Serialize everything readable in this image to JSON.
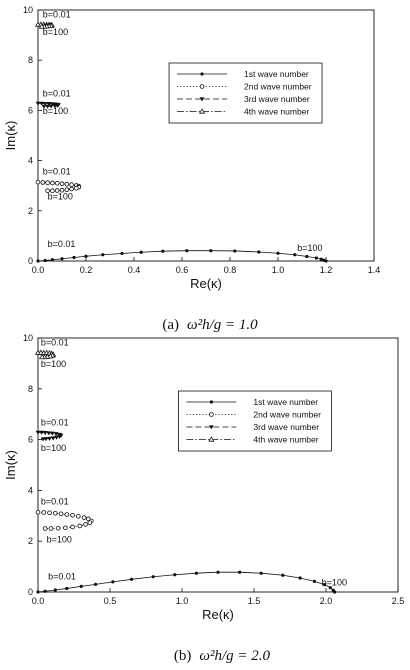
{
  "colors": {
    "ink": "#111111",
    "background": "#ffffff"
  },
  "chart_data": [
    {
      "type": "scatter",
      "caption_label": "(a)",
      "caption_formula": "ω²h/g = 1.0",
      "xlabel": "Re(κ)",
      "ylabel": "Im(κ)",
      "xlim": [
        0,
        1.4
      ],
      "ylim": [
        0,
        10
      ],
      "xticks": [
        "0.0",
        "0.2",
        "0.4",
        "0.6",
        "0.8",
        "1.0",
        "1.2",
        "1.4"
      ],
      "yticks": [
        "0",
        "2",
        "4",
        "6",
        "8",
        "10"
      ],
      "grid": false,
      "legend_position": "top-right",
      "series": [
        {
          "name": "1st wave number",
          "marker": "dot",
          "line": "solid",
          "x": [
            0.0,
            0.03,
            0.06,
            0.1,
            0.15,
            0.2,
            0.27,
            0.35,
            0.43,
            0.52,
            0.62,
            0.72,
            0.82,
            0.92,
            1.0,
            1.07,
            1.12,
            1.16,
            1.18,
            1.19,
            1.2
          ],
          "y": [
            0.0,
            0.02,
            0.05,
            0.09,
            0.14,
            0.19,
            0.25,
            0.3,
            0.35,
            0.39,
            0.41,
            0.41,
            0.4,
            0.36,
            0.31,
            0.25,
            0.18,
            0.12,
            0.07,
            0.03,
            0.0
          ]
        },
        {
          "name": "2nd wave number",
          "marker": "circle",
          "line": "dotted",
          "x": [
            0.0,
            0.02,
            0.04,
            0.06,
            0.08,
            0.1,
            0.12,
            0.14,
            0.16,
            0.17,
            0.17,
            0.16,
            0.14,
            0.12,
            0.1,
            0.08,
            0.06,
            0.04
          ],
          "y": [
            3.14,
            3.13,
            3.12,
            3.11,
            3.1,
            3.08,
            3.06,
            3.04,
            3.01,
            2.98,
            2.94,
            2.9,
            2.87,
            2.84,
            2.82,
            2.81,
            2.8,
            2.8
          ]
        },
        {
          "name": "3rd wave number",
          "marker": "triangle-down",
          "line": "dashed",
          "x": [
            0.0,
            0.015,
            0.03,
            0.045,
            0.06,
            0.07,
            0.08,
            0.085,
            0.08,
            0.07,
            0.055,
            0.04,
            0.025
          ],
          "y": [
            6.28,
            6.28,
            6.27,
            6.27,
            6.26,
            6.25,
            6.24,
            6.22,
            6.2,
            6.18,
            6.17,
            6.16,
            6.16
          ]
        },
        {
          "name": "4th wave number",
          "marker": "triangle-up",
          "line": "dashdot",
          "x": [
            0.0,
            0.012,
            0.024,
            0.036,
            0.046,
            0.054,
            0.058,
            0.054,
            0.046,
            0.036,
            0.026,
            0.016
          ],
          "y": [
            9.42,
            9.42,
            9.42,
            9.41,
            9.41,
            9.4,
            9.39,
            9.37,
            9.36,
            9.35,
            9.34,
            9.34
          ]
        }
      ],
      "annotations": [
        {
          "text": "b=0.01",
          "x": 0.02,
          "y": 9.7
        },
        {
          "text": "b=100",
          "x": 0.02,
          "y": 9.0
        },
        {
          "text": "b=0.01",
          "x": 0.02,
          "y": 6.55
        },
        {
          "text": "b=100",
          "x": 0.02,
          "y": 5.85
        },
        {
          "text": "b=0.01",
          "x": 0.02,
          "y": 3.45
        },
        {
          "text": "b=100",
          "x": 0.04,
          "y": 2.45
        },
        {
          "text": "b=0.01",
          "x": 0.04,
          "y": 0.55
        },
        {
          "text": "b=100",
          "x": 1.08,
          "y": 0.4
        }
      ]
    },
    {
      "type": "scatter",
      "caption_label": "(b)",
      "caption_formula": "ω²h/g = 2.0",
      "xlabel": "Re(κ)",
      "ylabel": "Im(κ)",
      "xlim": [
        0,
        2.5
      ],
      "ylim": [
        0,
        10
      ],
      "xticks": [
        "0.0",
        "0.5",
        "1.0",
        "1.5",
        "2.0",
        "2.5"
      ],
      "yticks": [
        "0",
        "2",
        "4",
        "6",
        "8",
        "10"
      ],
      "grid": false,
      "legend_position": "top-right",
      "series": [
        {
          "name": "1st wave number",
          "marker": "dot",
          "line": "solid",
          "x": [
            0.0,
            0.05,
            0.12,
            0.2,
            0.3,
            0.4,
            0.52,
            0.65,
            0.8,
            0.95,
            1.1,
            1.25,
            1.4,
            1.55,
            1.7,
            1.82,
            1.92,
            1.99,
            2.03,
            2.05,
            2.06
          ],
          "y": [
            0.0,
            0.03,
            0.08,
            0.14,
            0.22,
            0.3,
            0.4,
            0.5,
            0.6,
            0.68,
            0.74,
            0.78,
            0.78,
            0.74,
            0.66,
            0.55,
            0.42,
            0.29,
            0.17,
            0.07,
            0.0
          ]
        },
        {
          "name": "2nd wave number",
          "marker": "circle",
          "line": "dotted",
          "x": [
            0.0,
            0.04,
            0.08,
            0.12,
            0.16,
            0.2,
            0.24,
            0.28,
            0.32,
            0.35,
            0.37,
            0.36,
            0.33,
            0.29,
            0.24,
            0.19,
            0.14,
            0.09,
            0.05
          ],
          "y": [
            3.14,
            3.13,
            3.12,
            3.1,
            3.08,
            3.05,
            3.02,
            2.98,
            2.93,
            2.88,
            2.8,
            2.73,
            2.66,
            2.6,
            2.56,
            2.53,
            2.51,
            2.5,
            2.5
          ]
        },
        {
          "name": "3rd wave number",
          "marker": "triangle-down",
          "line": "dashed",
          "x": [
            0.0,
            0.025,
            0.05,
            0.075,
            0.1,
            0.125,
            0.15,
            0.16,
            0.15,
            0.13,
            0.105,
            0.08,
            0.055,
            0.035
          ],
          "y": [
            6.28,
            6.28,
            6.27,
            6.26,
            6.25,
            6.23,
            6.2,
            6.16,
            6.12,
            6.09,
            6.06,
            6.04,
            6.03,
            6.02
          ]
        },
        {
          "name": "4th wave number",
          "marker": "triangle-up",
          "line": "dashdot",
          "x": [
            0.0,
            0.02,
            0.04,
            0.06,
            0.08,
            0.095,
            0.105,
            0.1,
            0.085,
            0.065,
            0.045,
            0.028
          ],
          "y": [
            9.42,
            9.42,
            9.41,
            9.41,
            9.4,
            9.38,
            9.35,
            9.31,
            9.28,
            9.26,
            9.25,
            9.25
          ]
        }
      ],
      "annotations": [
        {
          "text": "b=0.01",
          "x": 0.02,
          "y": 9.7
        },
        {
          "text": "b=100",
          "x": 0.02,
          "y": 8.85
        },
        {
          "text": "b=0.01",
          "x": 0.02,
          "y": 6.55
        },
        {
          "text": "b=100",
          "x": 0.02,
          "y": 5.55
        },
        {
          "text": "b=0.01",
          "x": 0.02,
          "y": 3.45
        },
        {
          "text": "b=100",
          "x": 0.06,
          "y": 1.95
        },
        {
          "text": "b=0.01",
          "x": 0.07,
          "y": 0.5
        },
        {
          "text": "b=100",
          "x": 1.97,
          "y": 0.25
        }
      ]
    }
  ]
}
